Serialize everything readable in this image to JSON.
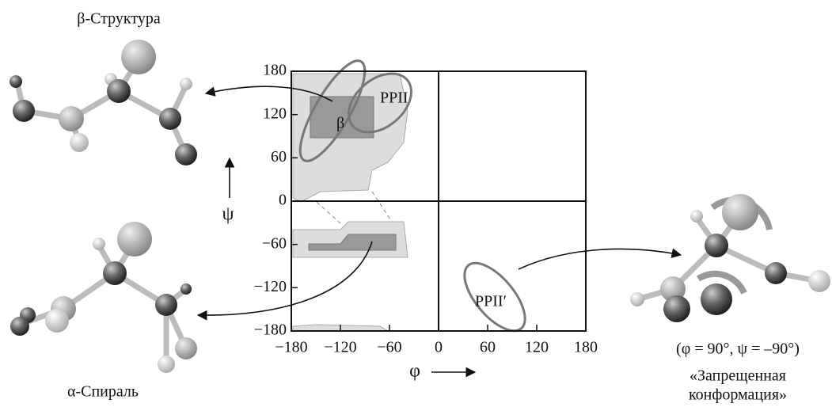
{
  "labels": {
    "beta_structure": "β-Структура",
    "alpha_helix": "α-Спираль",
    "psi": "ψ",
    "phi": "φ",
    "ppii": "PPII",
    "beta": "β",
    "ppii_prime": "PPII′",
    "forbidden_angles": "(φ = 90°, ψ = –90°)",
    "forbidden_line1": "«Запрещенная",
    "forbidden_line2": "конформация»"
  },
  "plot": {
    "xlim": [
      -180,
      180
    ],
    "ylim": [
      -180,
      180
    ],
    "xticks": [
      {
        "value": -180,
        "label": "−180"
      },
      {
        "value": -120,
        "label": "−120"
      },
      {
        "value": -60,
        "label": "−60"
      },
      0,
      60,
      120,
      180
    ],
    "yticks": [
      {
        "value": -180,
        "label": "−180"
      },
      {
        "value": -120,
        "label": "−120"
      },
      {
        "value": -60,
        "label": "−60"
      },
      0,
      60,
      120,
      180
    ]
  }
}
